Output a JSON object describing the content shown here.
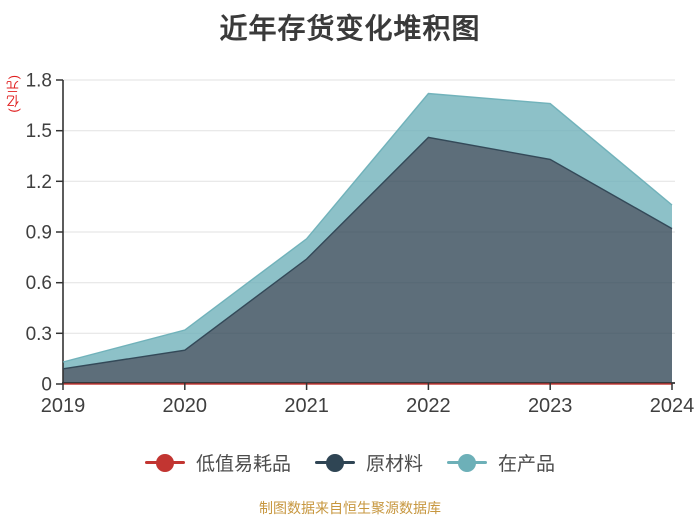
{
  "title": "近年存货变化堆积图",
  "footer": "制图数据来自恒生聚源数据库",
  "colors": {
    "background": "#ffffff",
    "title": "#3a3a3a",
    "axis": "#333333",
    "grid": "#e2e2e2",
    "tick_label": "#3f3f3f",
    "unit_label": "#e02020",
    "legend_text": "#4c4c4c",
    "footer": "#c7973f"
  },
  "chart_data": {
    "type": "area",
    "stacked": true,
    "title": "近年存货变化堆积图",
    "xlabel": "",
    "ylabel": "(亿元)",
    "x": [
      "2019",
      "2020",
      "2021",
      "2022",
      "2023",
      "2024"
    ],
    "ylim": [
      0,
      1.8
    ],
    "yticks": [
      0,
      0.3,
      0.6,
      0.9,
      1.2,
      1.5,
      1.8
    ],
    "ytick_labels": [
      "0",
      "0.3",
      "0.6",
      "0.9",
      "1.2",
      "1.5",
      "1.8"
    ],
    "grid": true,
    "legend_position": "bottom",
    "series": [
      {
        "name": "低值易耗品",
        "color": "#c23531",
        "values": [
          0,
          0,
          0,
          0,
          0,
          0
        ]
      },
      {
        "name": "原材料",
        "color": "#2f4554",
        "values": [
          0.09,
          0.2,
          0.74,
          1.46,
          1.33,
          0.92
        ]
      },
      {
        "name": "在产品",
        "color": "#6db0b8",
        "values": [
          0.04,
          0.12,
          0.12,
          0.26,
          0.33,
          0.14
        ]
      }
    ],
    "stack_totals": [
      0.13,
      0.32,
      0.86,
      1.72,
      1.66,
      1.06
    ]
  }
}
